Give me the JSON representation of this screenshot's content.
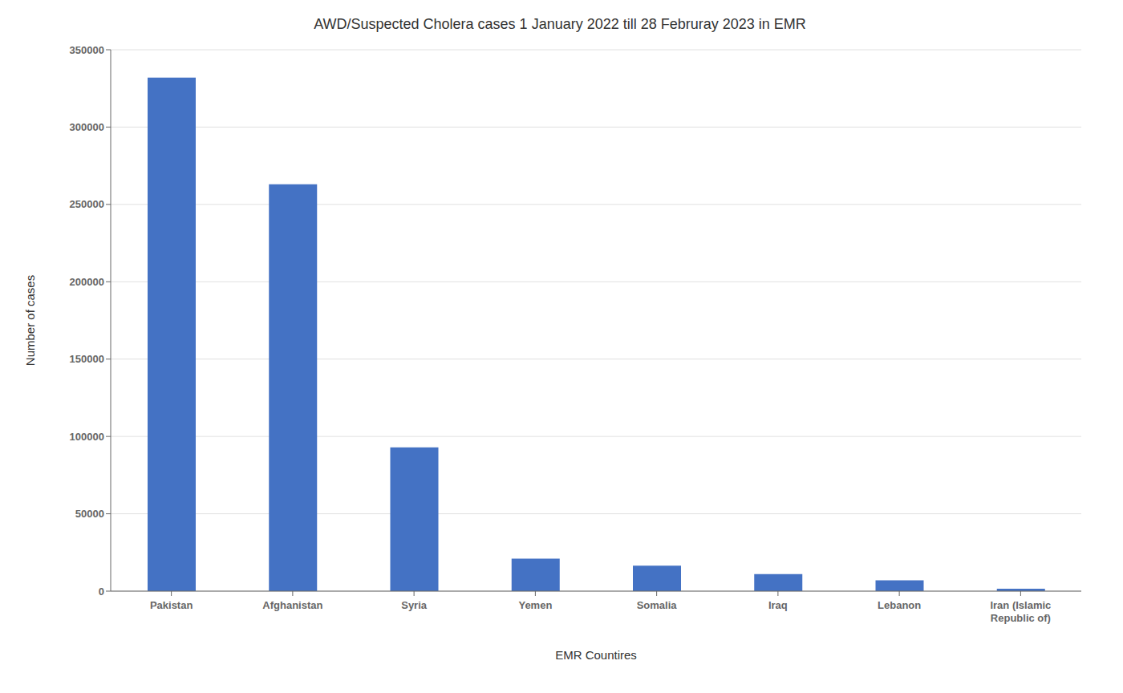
{
  "chart_data": {
    "type": "bar",
    "title": "AWD/Suspected Cholera cases 1 January 2022 till 28 Februray  2023  in EMR",
    "xlabel": "EMR Countires",
    "ylabel": "Number of cases",
    "categories": [
      "Pakistan",
      "Afghanistan",
      "Syria",
      "Yemen",
      "Somalia",
      "Iraq",
      "Lebanon",
      "Iran (Islamic\nRepublic of)"
    ],
    "values": [
      332000,
      263000,
      93000,
      21000,
      16500,
      11000,
      7000,
      1500
    ],
    "color": "#4472C4",
    "ylim": [
      0,
      350000
    ],
    "yticks": [
      0,
      50000,
      100000,
      150000,
      200000,
      250000,
      300000,
      350000
    ],
    "grid": true
  }
}
